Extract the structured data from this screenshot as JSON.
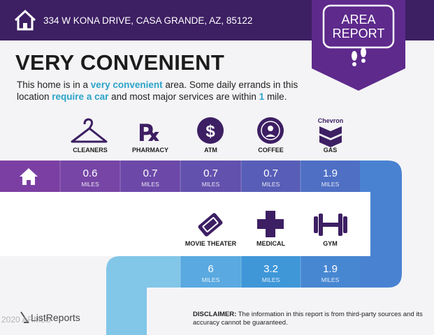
{
  "header": {
    "address": "334 W KONA DRIVE, CASA GRANDE, AZ, 85122"
  },
  "badge": {
    "line1": "AREA",
    "line2": "REPORT"
  },
  "title": "VERY CONVENIENT",
  "description": [
    "This home is in a ",
    "very convenient",
    " area. Some daily errands in this",
    "location ",
    "require a car",
    " and most major services are within ",
    "1",
    " mile."
  ],
  "amenities": [
    {
      "label": "CLEANERS",
      "distance": "0.6",
      "unit": "MILES"
    },
    {
      "label": "PHARMACY",
      "distance": "0.7",
      "unit": "MILES"
    },
    {
      "label": "ATM",
      "distance": "0.7",
      "unit": "MILES"
    },
    {
      "label": "COFFEE",
      "distance": "0.7",
      "unit": "MILES"
    },
    {
      "label": "GAS",
      "distance": "1.9",
      "unit": "MILES"
    },
    {
      "label": "MOVIE THEATER",
      "distance": "6",
      "unit": "MILES"
    },
    {
      "label": "MEDICAL",
      "distance": "3.2",
      "unit": "MILES"
    },
    {
      "label": "GYM",
      "distance": "1.9",
      "unit": "MILES"
    }
  ],
  "gas_brand": "Chevron",
  "footer": {
    "logo": "ListReports",
    "watermark": "2020 ARMLS",
    "disclaimer_label": "DISCLAIMER:",
    "disclaimer_text": " The information in this report is from third-party sources and its accuracy cannot be guaranteed."
  }
}
